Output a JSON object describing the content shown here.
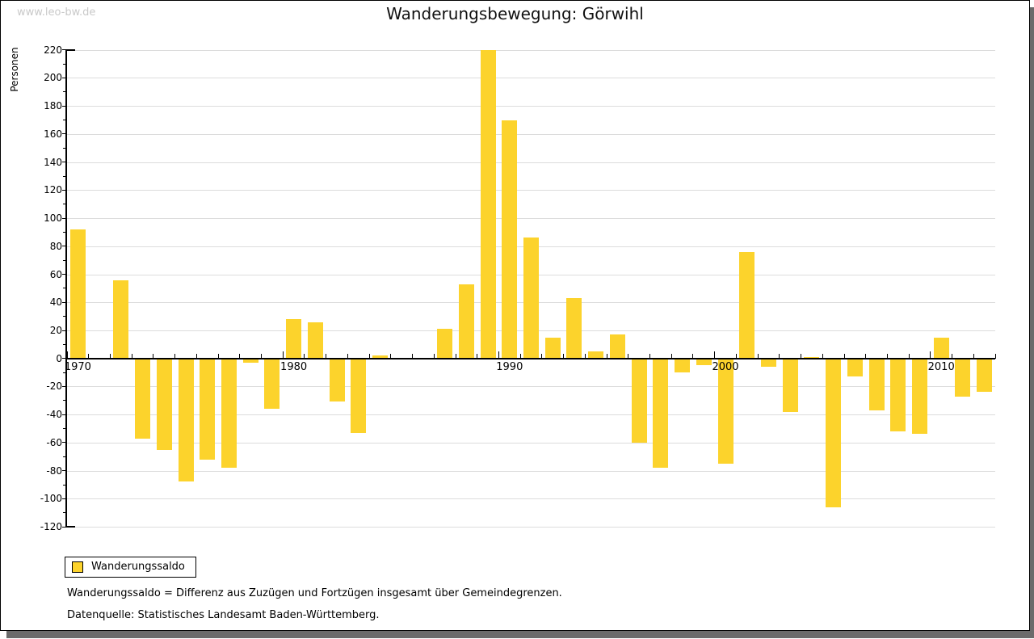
{
  "watermark": "www.leo-bw.de",
  "title": "Wanderungsbewegung: Görwihl",
  "legend": {
    "label": "Wanderungssaldo"
  },
  "footnotes": {
    "line1": "Wanderungssaldo = Differenz aus Zuzügen und Fortzügen insgesamt über Gemeindegrenzen.",
    "line2": "Datenquelle: Statistisches Landesamt Baden-Württemberg."
  },
  "chart_data": {
    "type": "bar",
    "title": "Wanderungsbewegung: Görwihl",
    "series_name": "Wanderungssaldo",
    "xlabel": "",
    "ylabel": "Personen",
    "ylim": [
      -120,
      220
    ],
    "ytick_step": 20,
    "grid": true,
    "legend_position": "bottom-left",
    "bar_color": "#fcd32c",
    "xtick_labels": [
      1970,
      1980,
      1990,
      2000,
      2010
    ],
    "x": [
      1970,
      1971,
      1972,
      1973,
      1974,
      1975,
      1976,
      1977,
      1978,
      1979,
      1980,
      1981,
      1982,
      1983,
      1984,
      1985,
      1986,
      1987,
      1988,
      1989,
      1990,
      1991,
      1992,
      1993,
      1994,
      1995,
      1996,
      1997,
      1998,
      1999,
      2000,
      2001,
      2002,
      2003,
      2004,
      2005,
      2006,
      2007,
      2008,
      2009,
      2010,
      2011,
      2012
    ],
    "values": [
      92,
      0,
      56,
      -57,
      -65,
      -88,
      -72,
      -78,
      -3,
      -36,
      28,
      26,
      -31,
      -53,
      2,
      0,
      0,
      21,
      53,
      220,
      170,
      86,
      15,
      43,
      5,
      17,
      -60,
      -78,
      -10,
      -5,
      -75,
      76,
      -6,
      -38,
      1,
      -106,
      -13,
      -37,
      -52,
      -54,
      15,
      -27,
      -24
    ]
  }
}
